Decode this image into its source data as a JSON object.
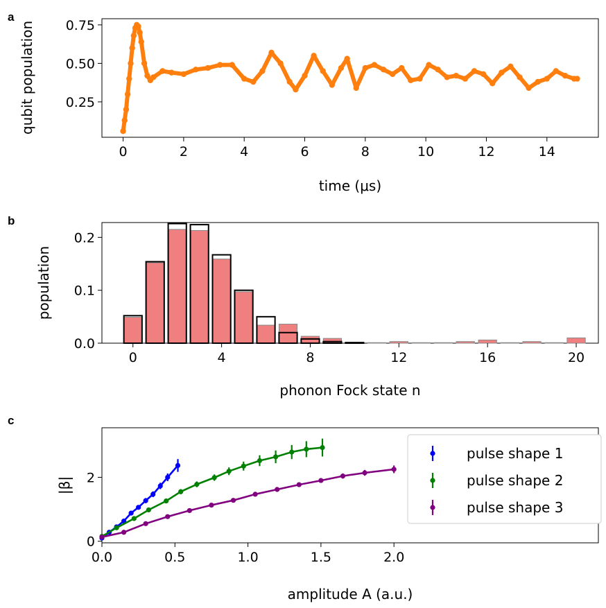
{
  "chart_data": [
    {
      "panel": "a",
      "type": "line",
      "xlabel": "time (μs)",
      "ylabel": "qubit population",
      "xlim": [
        -0.7,
        15.7
      ],
      "ylim": [
        0.02,
        0.79
      ],
      "xticks": [
        0,
        2,
        4,
        6,
        8,
        10,
        12,
        14
      ],
      "yticks": [
        0.25,
        0.5,
        0.75
      ],
      "ytick_labels": [
        "0.25",
        "0.50",
        "0.75"
      ],
      "series": [
        {
          "style": "line",
          "color": "#1f77b4",
          "x": [
            0,
            0.05,
            0.1,
            0.15,
            0.2,
            0.25,
            0.3,
            0.35,
            0.4,
            0.45,
            0.5,
            0.55,
            0.6,
            0.65,
            0.7,
            0.75,
            0.8,
            0.85,
            0.9,
            0.95,
            1.0
          ],
          "y": [
            0.06,
            0.13,
            0.2,
            0.3,
            0.4,
            0.5,
            0.6,
            0.68,
            0.73,
            0.75,
            0.74,
            0.7,
            0.64,
            0.56,
            0.49,
            0.44,
            0.41,
            0.39,
            0.39,
            0.4,
            0.41
          ]
        },
        {
          "style": "markers",
          "color": "#ff7f0e",
          "x": [
            0,
            0.05,
            0.1,
            0.15,
            0.2,
            0.25,
            0.3,
            0.35,
            0.4,
            0.45,
            0.5,
            0.55,
            0.6,
            0.7,
            0.8,
            0.9,
            1.0,
            1.3,
            1.6,
            2.0,
            2.4,
            2.8,
            3.2,
            3.6,
            4.0,
            4.3,
            4.6,
            4.9,
            5.2,
            5.5,
            5.7,
            6.0,
            6.3,
            6.6,
            6.9,
            7.2,
            7.4,
            7.7,
            8.0,
            8.3,
            8.6,
            8.9,
            9.2,
            9.5,
            9.8,
            10.1,
            10.4,
            10.7,
            11.0,
            11.3,
            11.6,
            11.9,
            12.2,
            12.5,
            12.8,
            13.1,
            13.4,
            13.7,
            14.0,
            14.3,
            14.6,
            14.9,
            15.0
          ],
          "y": [
            0.06,
            0.13,
            0.2,
            0.3,
            0.4,
            0.5,
            0.6,
            0.68,
            0.73,
            0.75,
            0.74,
            0.7,
            0.64,
            0.5,
            0.42,
            0.39,
            0.41,
            0.45,
            0.44,
            0.43,
            0.46,
            0.47,
            0.49,
            0.49,
            0.4,
            0.38,
            0.45,
            0.57,
            0.5,
            0.38,
            0.33,
            0.42,
            0.55,
            0.45,
            0.36,
            0.47,
            0.53,
            0.34,
            0.47,
            0.49,
            0.46,
            0.43,
            0.47,
            0.39,
            0.4,
            0.49,
            0.46,
            0.41,
            0.42,
            0.4,
            0.45,
            0.43,
            0.37,
            0.44,
            0.48,
            0.41,
            0.34,
            0.38,
            0.4,
            0.45,
            0.42,
            0.4,
            0.4
          ]
        }
      ]
    },
    {
      "panel": "b",
      "type": "bar",
      "xlabel": "phonon Fock state n",
      "ylabel": "population",
      "xlim": [
        -1.4,
        21.0
      ],
      "ylim": [
        0,
        0.228
      ],
      "xticks": [
        0,
        4,
        8,
        12,
        16,
        20
      ],
      "yticks": [
        0.0,
        0.1,
        0.2
      ],
      "ytick_labels": [
        "0.0",
        "0.1",
        "0.2"
      ],
      "categories": [
        0,
        1,
        2,
        3,
        4,
        5,
        6,
        7,
        8,
        9,
        10,
        11,
        12,
        13,
        14,
        15,
        16,
        17,
        18,
        19,
        20
      ],
      "series": [
        {
          "style": "filled",
          "color": "#f08080",
          "values": [
            0.049,
            0.152,
            0.215,
            0.213,
            0.159,
            0.097,
            0.034,
            0.036,
            0.013,
            0.009,
            0.002,
            0.001,
            0.003,
            0.001,
            0.001,
            0.003,
            0.006,
            0.001,
            0.003,
            0.001,
            0.01
          ]
        },
        {
          "style": "outline",
          "color": "#000000",
          "values": [
            0.052,
            0.154,
            0.226,
            0.224,
            0.167,
            0.1,
            0.05,
            0.02,
            0.008,
            0.003,
            0.001,
            0.0,
            0.0,
            0.0,
            0.0,
            0.0,
            0.0,
            0.0,
            0.0,
            0.0,
            0.0
          ]
        }
      ]
    },
    {
      "panel": "c",
      "type": "scatter",
      "xlabel": "amplitude A (a.u.)",
      "ylabel": "|β|",
      "xlim": [
        0,
        3.4
      ],
      "ylim": [
        -0.05,
        3.55
      ],
      "xticks": [
        0.0,
        0.5,
        1.0,
        1.5,
        2.0
      ],
      "xtick_labels": [
        "0.0",
        "0.5",
        "1.0",
        "1.5",
        "2.0"
      ],
      "yticks": [
        0,
        2
      ],
      "legend_position": "top-right",
      "series": [
        {
          "name": "pulse shape 1",
          "color": "#0000ff",
          "x": [
            0,
            0.05,
            0.1,
            0.15,
            0.2,
            0.25,
            0.3,
            0.35,
            0.4,
            0.45,
            0.52
          ],
          "y": [
            0.1,
            0.28,
            0.45,
            0.63,
            0.88,
            1.06,
            1.27,
            1.47,
            1.73,
            2.0,
            2.37
          ],
          "err": [
            0.03,
            0.04,
            0.05,
            0.05,
            0.06,
            0.07,
            0.08,
            0.09,
            0.1,
            0.12,
            0.2
          ]
        },
        {
          "name": "pulse shape 2",
          "color": "#008000",
          "x": [
            0,
            0.1,
            0.22,
            0.32,
            0.44,
            0.54,
            0.65,
            0.77,
            0.87,
            0.97,
            1.08,
            1.19,
            1.3,
            1.4,
            1.51
          ],
          "y": [
            0.15,
            0.42,
            0.71,
            0.98,
            1.26,
            1.55,
            1.78,
            1.99,
            2.19,
            2.35,
            2.52,
            2.64,
            2.79,
            2.88,
            2.93
          ],
          "err": [
            0.04,
            0.05,
            0.06,
            0.06,
            0.07,
            0.08,
            0.09,
            0.1,
            0.12,
            0.14,
            0.17,
            0.2,
            0.22,
            0.25,
            0.28
          ]
        },
        {
          "name": "pulse shape 3",
          "color": "#800080",
          "x": [
            0,
            0.15,
            0.3,
            0.45,
            0.6,
            0.75,
            0.9,
            1.05,
            1.2,
            1.35,
            1.5,
            1.65,
            1.8,
            2.0
          ],
          "y": [
            0.13,
            0.28,
            0.55,
            0.77,
            0.96,
            1.13,
            1.28,
            1.47,
            1.62,
            1.77,
            1.9,
            2.04,
            2.14,
            2.25
          ],
          "err": [
            0.03,
            0.03,
            0.04,
            0.04,
            0.05,
            0.05,
            0.05,
            0.06,
            0.06,
            0.06,
            0.07,
            0.08,
            0.09,
            0.12
          ]
        }
      ]
    }
  ]
}
